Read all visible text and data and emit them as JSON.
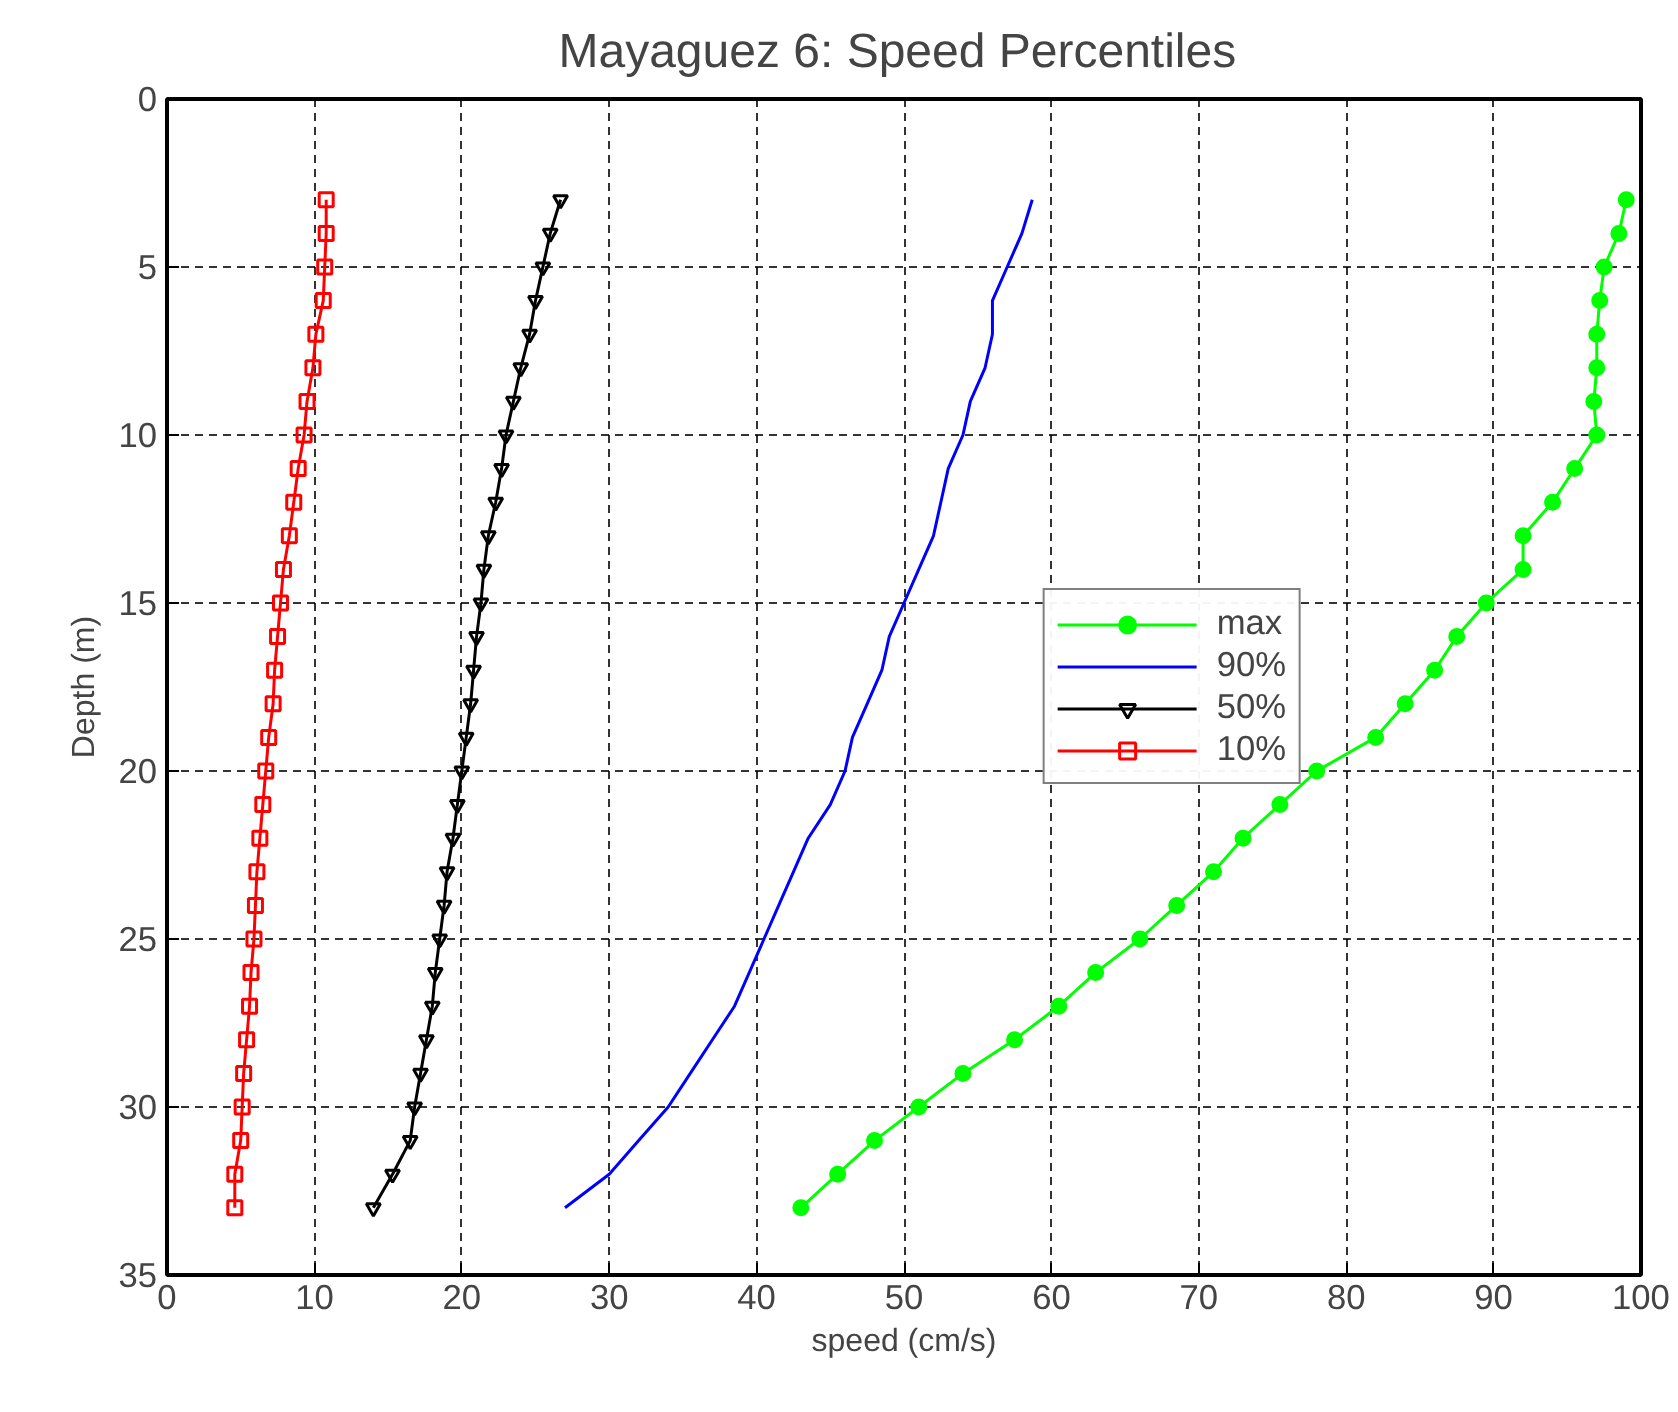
{
  "chart_data": {
    "type": "line",
    "title": "Mayaguez 6:  Speed Percentiles",
    "xlabel": "speed (cm/s)",
    "ylabel": "Depth (m)",
    "xlim": [
      0,
      100
    ],
    "xticks": [
      0,
      10,
      20,
      30,
      40,
      50,
      60,
      70,
      80,
      90,
      100
    ],
    "ylim": [
      35,
      0
    ],
    "yticks": [
      0,
      5,
      10,
      15,
      20,
      25,
      30,
      35
    ],
    "grid": true,
    "legend": "right",
    "line_style": "solid",
    "series": [
      {
        "name": "max",
        "color": "#00ff00",
        "marker": "circle",
        "x": [
          99,
          98.5,
          97.5,
          97.2,
          97,
          97,
          96.8,
          97,
          95.5,
          94,
          92,
          92,
          89.5,
          87.5,
          86,
          84,
          82,
          78,
          75.5,
          73,
          71,
          68.5,
          66,
          63,
          60.5,
          57.5,
          54,
          51,
          48,
          45.5,
          43
        ],
        "values": [
          3,
          4,
          5,
          6,
          7,
          8,
          9,
          10,
          11,
          12,
          13,
          14,
          15,
          16,
          17,
          18,
          19,
          20,
          21,
          22,
          23,
          24,
          25,
          26,
          27,
          28,
          29,
          30,
          31,
          32,
          33
        ]
      },
      {
        "name": "90%",
        "color": "#0000ff",
        "marker": "none",
        "x": [
          58.7,
          58,
          57,
          56,
          56,
          55.5,
          54.5,
          54,
          53,
          52.5,
          52,
          51,
          50,
          49,
          48.5,
          47.5,
          46.5,
          46,
          45,
          43.5,
          42.5,
          41.5,
          40.5,
          39.5,
          38.5,
          37,
          35.5,
          34,
          32,
          30,
          27
        ],
        "values": [
          3,
          4,
          5,
          6,
          7,
          8,
          9,
          10,
          11,
          12,
          13,
          14,
          15,
          16,
          17,
          18,
          19,
          20,
          21,
          22,
          23,
          24,
          25,
          26,
          27,
          28,
          29,
          30,
          31,
          32,
          33
        ]
      },
      {
        "name": "50%",
        "color": "#000000",
        "marker": "triangle",
        "x": [
          26.7,
          26,
          25.5,
          25,
          24.6,
          24,
          23.5,
          23,
          22.7,
          22.3,
          21.8,
          21.5,
          21.3,
          21,
          20.8,
          20.6,
          20.3,
          20,
          19.7,
          19.4,
          19,
          18.8,
          18.5,
          18.2,
          18,
          17.6,
          17.2,
          16.8,
          16.5,
          15.3,
          14
        ],
        "values": [
          3,
          4,
          5,
          6,
          7,
          8,
          9,
          10,
          11,
          12,
          13,
          14,
          15,
          16,
          17,
          18,
          19,
          20,
          21,
          22,
          23,
          24,
          25,
          26,
          27,
          28,
          29,
          30,
          31,
          32,
          33
        ]
      },
      {
        "name": "10%",
        "color": "#ff0000",
        "marker": "square",
        "x": [
          10.8,
          10.8,
          10.7,
          10.6,
          10.1,
          9.9,
          9.5,
          9.3,
          8.9,
          8.6,
          8.3,
          7.9,
          7.7,
          7.5,
          7.3,
          7.2,
          6.9,
          6.7,
          6.5,
          6.3,
          6.1,
          6.0,
          5.9,
          5.7,
          5.6,
          5.4,
          5.2,
          5.1,
          5.0,
          4.6,
          4.6
        ],
        "values": [
          3,
          4,
          5,
          6,
          7,
          8,
          9,
          10,
          11,
          12,
          13,
          14,
          15,
          16,
          17,
          18,
          19,
          20,
          21,
          22,
          23,
          24,
          25,
          26,
          27,
          28,
          29,
          30,
          31,
          32,
          33
        ]
      }
    ]
  }
}
